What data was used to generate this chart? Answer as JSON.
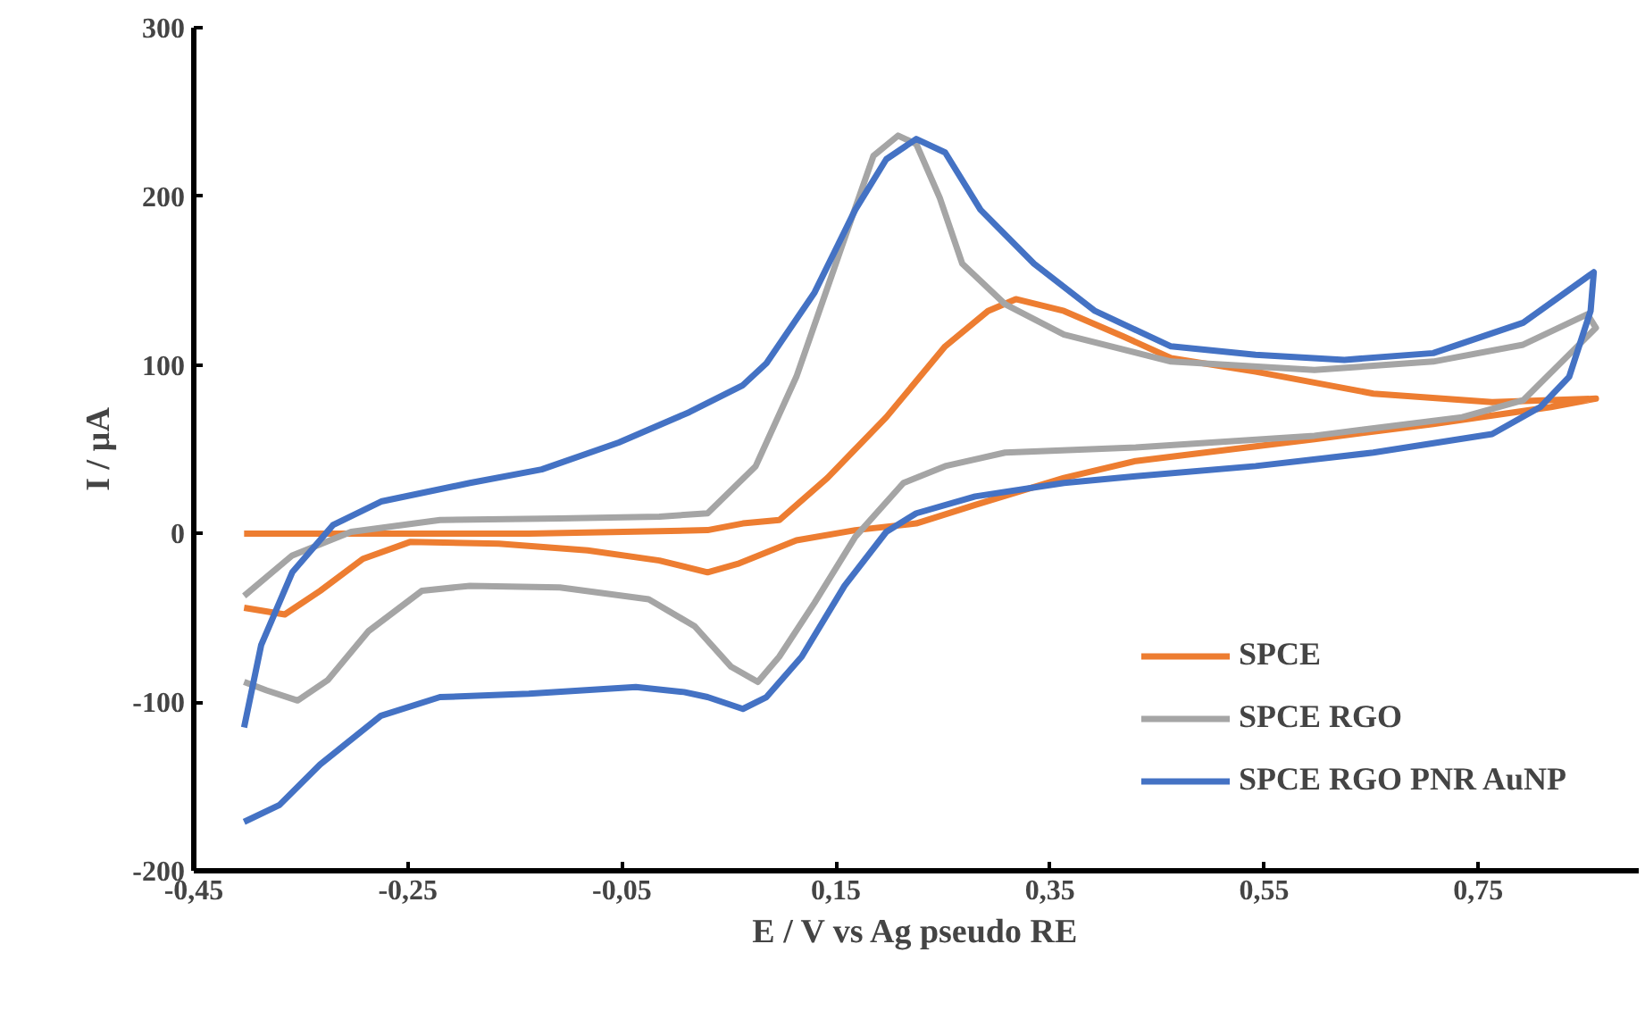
{
  "chart_data": {
    "type": "line",
    "xlabel": "E / V vs Ag pseudo RE",
    "ylabel": "I / µA",
    "xlim": [
      -0.45,
      0.9
    ],
    "ylim": [
      -200,
      300
    ],
    "xticks": [
      {
        "value": -0.45,
        "label": "-0,45"
      },
      {
        "value": -0.25,
        "label": "-0,25"
      },
      {
        "value": -0.05,
        "label": "-0,05"
      },
      {
        "value": 0.15,
        "label": "0,15"
      },
      {
        "value": 0.35,
        "label": "0,35"
      },
      {
        "value": 0.55,
        "label": "0,55"
      },
      {
        "value": 0.75,
        "label": "0,75"
      }
    ],
    "yticks": [
      -200,
      -100,
      0,
      100,
      200,
      300
    ],
    "grid": false,
    "legend": "bottom right",
    "marker": "none",
    "line_style": "solid",
    "series": [
      {
        "name": "SPCE",
        "color": "#ed7d31",
        "x": [
          -0.403,
          -0.137,
          0.03,
          0.063,
          0.097,
          0.142,
          0.197,
          0.252,
          0.292,
          0.318,
          0.363,
          0.418,
          0.463,
          0.542,
          0.652,
          0.763,
          0.86,
          0.818,
          0.708,
          0.597,
          0.43,
          0.363,
          0.28,
          0.225,
          0.168,
          0.113,
          0.058,
          0.03,
          -0.015,
          -0.082,
          -0.165,
          -0.248,
          -0.292,
          -0.332,
          -0.365,
          -0.403
        ],
        "values": [
          0,
          0,
          2,
          6,
          8,
          33,
          69,
          111,
          132,
          139,
          132,
          117,
          104,
          96,
          83,
          78,
          80,
          75,
          65,
          56,
          43,
          33,
          17,
          6,
          2,
          -4,
          -18,
          -23,
          -16,
          -10,
          -6,
          -5,
          -15,
          -34,
          -48,
          -44
        ]
      },
      {
        "name": "SPCE RGO",
        "color": "#a5a5a5",
        "x": [
          -0.403,
          -0.358,
          -0.303,
          -0.22,
          -0.108,
          -0.015,
          0.03,
          0.075,
          0.113,
          0.152,
          0.185,
          0.208,
          0.225,
          0.247,
          0.268,
          0.308,
          0.363,
          0.463,
          0.597,
          0.708,
          0.792,
          0.852,
          0.86,
          0.792,
          0.735,
          0.597,
          0.43,
          0.308,
          0.252,
          0.213,
          0.168,
          0.13,
          0.097,
          0.077,
          0.052,
          0.018,
          -0.025,
          -0.108,
          -0.192,
          -0.237,
          -0.287,
          -0.325,
          -0.353,
          -0.382,
          -0.403
        ],
        "values": [
          -37,
          -13,
          1,
          8,
          9,
          10,
          12,
          40,
          93,
          164,
          224,
          236,
          231,
          199,
          160,
          136,
          118,
          102,
          97,
          102,
          112,
          130,
          122,
          79,
          69,
          58,
          51,
          48,
          40,
          30,
          -2,
          -41,
          -73,
          -88,
          -79,
          -55,
          -39,
          -32,
          -31,
          -34,
          -58,
          -87,
          -99,
          -93,
          -88
        ]
      },
      {
        "name": "SPCE RGO PNR AuNP",
        "color": "#4472c4",
        "x": [
          -0.403,
          -0.387,
          -0.358,
          -0.32,
          -0.275,
          -0.192,
          -0.125,
          -0.053,
          0.013,
          0.063,
          0.085,
          0.13,
          0.168,
          0.197,
          0.225,
          0.252,
          0.285,
          0.335,
          0.392,
          0.463,
          0.542,
          0.625,
          0.708,
          0.792,
          0.858,
          0.855,
          0.835,
          0.808,
          0.763,
          0.652,
          0.542,
          0.43,
          0.363,
          0.28,
          0.225,
          0.197,
          0.158,
          0.118,
          0.085,
          0.063,
          0.03,
          0.008,
          -0.037,
          -0.137,
          -0.22,
          -0.275,
          -0.332,
          -0.37,
          -0.403
        ],
        "values": [
          -115,
          -66,
          -23,
          5,
          19,
          30,
          38,
          54,
          72,
          88,
          101,
          143,
          192,
          222,
          234,
          226,
          192,
          160,
          132,
          111,
          106,
          103,
          107,
          125,
          155,
          132,
          93,
          75,
          59,
          48,
          40,
          34,
          30,
          22,
          12,
          1,
          -31,
          -73,
          -97,
          -104,
          -97,
          -94,
          -91,
          -95,
          -97,
          -108,
          -137,
          -161,
          -171
        ]
      }
    ]
  }
}
